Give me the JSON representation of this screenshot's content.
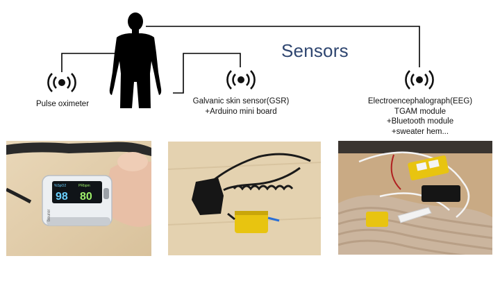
{
  "title": "Sensors",
  "sensors": [
    {
      "lines": [
        "Pulse oximeter"
      ],
      "icon": "wireless-signal-icon"
    },
    {
      "lines": [
        "Galvanic skin sensor(GSR)",
        "+Arduino mini board"
      ],
      "icon": "wireless-signal-icon"
    },
    {
      "lines": [
        "Electroencephalograph(EEG)",
        "TGAM module",
        "+Bluetooth module",
        "+sweater hem..."
      ],
      "icon": "wireless-signal-icon"
    }
  ],
  "oximeter_display": {
    "brand": "beurer",
    "spo2_label": "%SpO2",
    "spo2": "98",
    "pulse_label": "PRbpm",
    "pulse": "80"
  },
  "colors": {
    "title": "#2f4670",
    "line": "#000000",
    "icon": "#111111"
  },
  "figure": "human-silhouette-icon"
}
